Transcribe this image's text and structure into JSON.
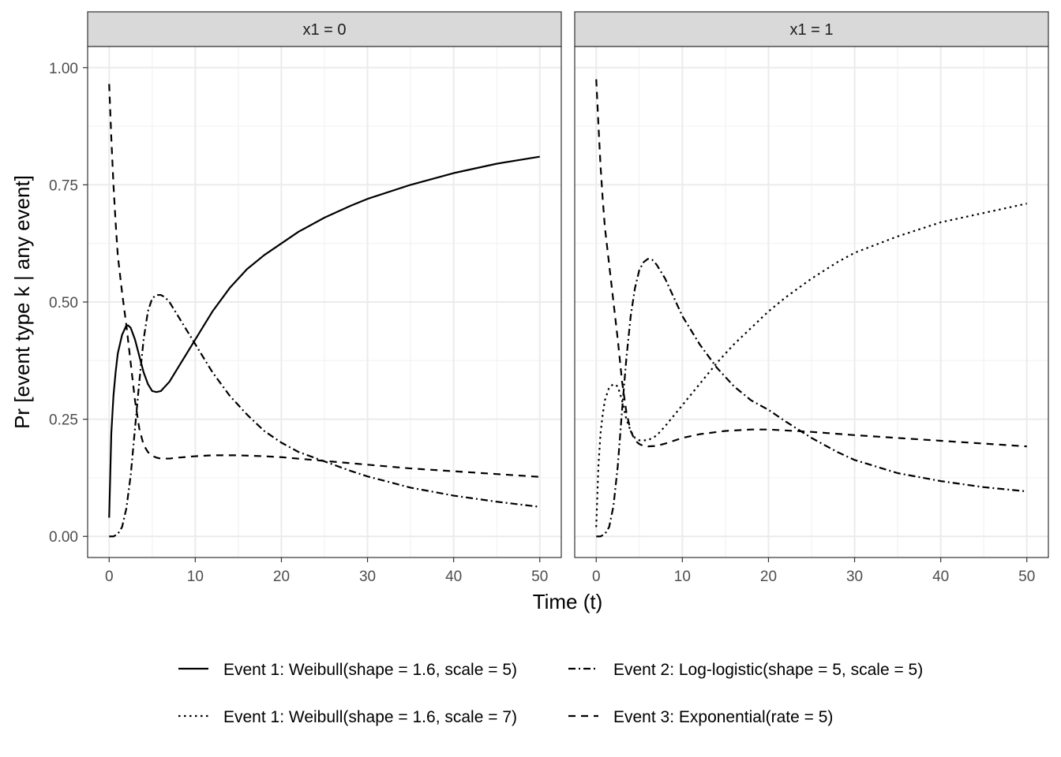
{
  "chart_data": {
    "type": "line",
    "xlabel": "Time (t)",
    "ylabel": "Pr [event type k | any event]",
    "xlim": [
      -2.5,
      52.5
    ],
    "ylim": [
      -0.045,
      1.045
    ],
    "x_ticks": [
      0,
      10,
      20,
      30,
      40,
      50
    ],
    "y_ticks": [
      0,
      0.25,
      0.5,
      0.75,
      1
    ],
    "x_tick_labels": [
      "0",
      "10",
      "20",
      "30",
      "40",
      "50"
    ],
    "y_tick_labels": [
      "0.00",
      "0.25",
      "0.50",
      "0.75",
      "1.00"
    ],
    "grid": true,
    "legend_position": "bottom",
    "legend": [
      {
        "label": "Event 1: Weibull(shape = 1.6, scale = 5)",
        "linetype": "solid"
      },
      {
        "label": "Event 1: Weibull(shape = 1.6, scale = 7)",
        "linetype": "dotted"
      },
      {
        "label": "Event 2: Log-logistic(shape = 5, scale = 5)",
        "linetype": "dashdot"
      },
      {
        "label": "Event 3: Exponential(rate = 5)",
        "linetype": "dashed"
      }
    ],
    "panels": [
      {
        "strip": "x1 = 0",
        "series": [
          {
            "name": "Event 1: Weibull(shape = 1.6, scale = 5)",
            "linetype": "solid",
            "x": [
              0,
              0.25,
              0.5,
              0.75,
              1,
              1.5,
              2,
              2.2,
              2.5,
              3,
              3.5,
              4,
              4.5,
              5,
              5.5,
              6,
              7,
              8,
              9,
              10,
              11,
              12,
              14,
              16,
              18,
              20,
              22,
              25,
              28,
              30,
              35,
              40,
              45,
              50
            ],
            "y": [
              0.04,
              0.22,
              0.3,
              0.35,
              0.39,
              0.43,
              0.45,
              0.45,
              0.445,
              0.42,
              0.385,
              0.35,
              0.325,
              0.31,
              0.308,
              0.31,
              0.33,
              0.36,
              0.39,
              0.42,
              0.45,
              0.48,
              0.53,
              0.57,
              0.6,
              0.625,
              0.65,
              0.68,
              0.705,
              0.72,
              0.75,
              0.775,
              0.795,
              0.81
            ]
          },
          {
            "name": "Event 2: Log-logistic(shape = 5, scale = 5)",
            "linetype": "dashdot",
            "x": [
              0,
              0.5,
              1,
              1.5,
              2,
              2.5,
              3,
              3.5,
              4,
              4.5,
              5,
              5.5,
              6,
              6.5,
              7,
              8,
              9,
              10,
              12,
              14,
              16,
              18,
              20,
              22,
              25,
              28,
              30,
              35,
              40,
              45,
              50
            ],
            "y": [
              0,
              0.0,
              0.005,
              0.02,
              0.06,
              0.13,
              0.23,
              0.33,
              0.42,
              0.48,
              0.508,
              0.515,
              0.515,
              0.51,
              0.5,
              0.47,
              0.44,
              0.41,
              0.35,
              0.3,
              0.26,
              0.225,
              0.2,
              0.18,
              0.16,
              0.14,
              0.128,
              0.104,
              0.087,
              0.074,
              0.063
            ]
          },
          {
            "name": "Event 3: Exponential(rate = 5)",
            "linetype": "dashed",
            "x": [
              0,
              0.25,
              0.5,
              0.75,
              1,
              1.5,
              2,
              2.5,
              3,
              3.5,
              4,
              4.5,
              5,
              5.5,
              6,
              7,
              8,
              10,
              12,
              15,
              18,
              20,
              25,
              30,
              35,
              40,
              45,
              50
            ],
            "y": [
              0.965,
              0.85,
              0.75,
              0.67,
              0.6,
              0.52,
              0.45,
              0.37,
              0.29,
              0.23,
              0.195,
              0.18,
              0.172,
              0.168,
              0.166,
              0.166,
              0.168,
              0.171,
              0.173,
              0.173,
              0.171,
              0.169,
              0.161,
              0.153,
              0.145,
              0.139,
              0.133,
              0.127
            ]
          }
        ]
      },
      {
        "strip": "x1 = 1",
        "series": [
          {
            "name": "Event 1: Weibull(shape = 1.6, scale = 7)",
            "linetype": "dotted",
            "x": [
              0,
              0.25,
              0.5,
              0.75,
              1,
              1.5,
              2,
              2.5,
              3,
              3.5,
              4,
              4.5,
              5,
              6,
              7,
              8,
              10,
              12,
              14,
              16,
              18,
              20,
              22,
              25,
              28,
              30,
              35,
              40,
              45,
              50
            ],
            "y": [
              0.02,
              0.15,
              0.22,
              0.26,
              0.29,
              0.318,
              0.325,
              0.32,
              0.29,
              0.25,
              0.225,
              0.21,
              0.205,
              0.205,
              0.215,
              0.235,
              0.28,
              0.325,
              0.37,
              0.41,
              0.445,
              0.48,
              0.51,
              0.55,
              0.585,
              0.605,
              0.64,
              0.67,
              0.69,
              0.71
            ]
          },
          {
            "name": "Event 2: Log-logistic(shape = 5, scale = 5)",
            "linetype": "dashdot",
            "x": [
              0,
              0.5,
              1,
              1.5,
              2,
              2.5,
              3,
              3.5,
              4,
              4.5,
              5,
              5.5,
              6,
              6.5,
              7,
              8,
              9,
              10,
              12,
              14,
              16,
              18,
              20,
              22,
              25,
              28,
              30,
              35,
              40,
              45,
              50
            ],
            "y": [
              0,
              0.0,
              0.005,
              0.02,
              0.065,
              0.15,
              0.27,
              0.38,
              0.47,
              0.53,
              0.568,
              0.585,
              0.592,
              0.59,
              0.58,
              0.55,
              0.51,
              0.47,
              0.41,
              0.36,
              0.32,
              0.29,
              0.27,
              0.245,
              0.21,
              0.18,
              0.163,
              0.135,
              0.118,
              0.105,
              0.096
            ]
          },
          {
            "name": "Event 3: Exponential(rate = 5)",
            "linetype": "dashed",
            "x": [
              0,
              0.25,
              0.5,
              0.75,
              1,
              1.5,
              2,
              2.5,
              3,
              3.5,
              4,
              4.5,
              5,
              5.5,
              6,
              7,
              8,
              10,
              12,
              15,
              18,
              20,
              25,
              30,
              35,
              40,
              45,
              50
            ],
            "y": [
              0.975,
              0.88,
              0.79,
              0.72,
              0.66,
              0.58,
              0.5,
              0.42,
              0.33,
              0.265,
              0.225,
              0.205,
              0.197,
              0.193,
              0.192,
              0.193,
              0.198,
              0.21,
              0.218,
              0.225,
              0.228,
              0.228,
              0.223,
              0.216,
              0.21,
              0.204,
              0.198,
              0.192
            ]
          }
        ]
      }
    ]
  }
}
